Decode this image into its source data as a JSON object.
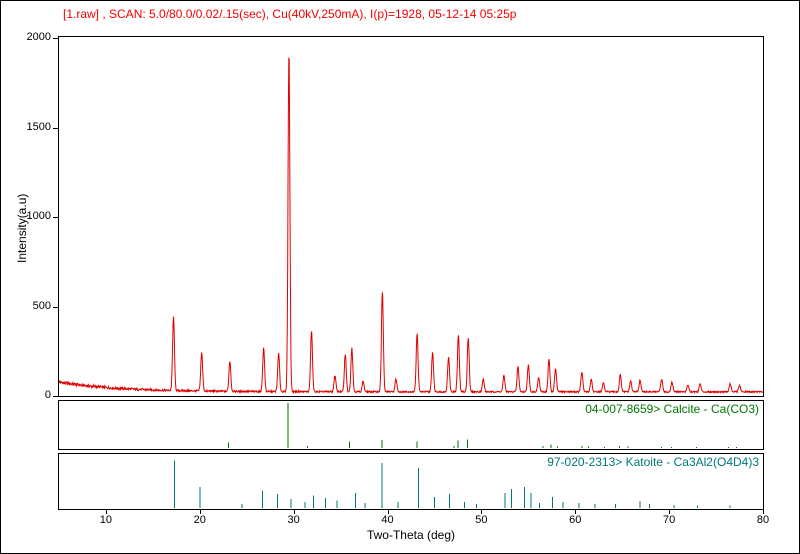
{
  "header": {
    "text": "[1.raw] , SCAN: 5.0/80.0/0.02/.15(sec), Cu(40kV,250mA), I(p)=1928, 05-12-14 05:25p",
    "color": "#f40000"
  },
  "axes": {
    "x_label": "Two-Theta (deg)",
    "y_label": "Intensity(a.u)",
    "x_range": [
      5,
      80
    ],
    "y_range": [
      0,
      2000
    ],
    "x_ticks": [
      10,
      20,
      30,
      40,
      50,
      60,
      70,
      80
    ],
    "y_ticks": [
      0,
      500,
      1000,
      1500,
      2000
    ]
  },
  "panels": {
    "calcite": {
      "label": "04-007-8659> Calcite - Ca(CO3)",
      "color": "#007700"
    },
    "katoite": {
      "label": "97-020-2313> Katoite - Ca3Al2(O4D4)3",
      "color": "#007878"
    }
  },
  "chart_data": [
    {
      "type": "line",
      "name": "1.raw measured XRD trace",
      "color": "#e00000",
      "x_range": [
        5,
        80
      ],
      "ylim": [
        0,
        2000
      ],
      "xlabel": "Two-Theta (deg)",
      "ylabel": "Intensity(a.u)",
      "peak_max_intensity": 1928,
      "background": {
        "base": 18,
        "amp": 55,
        "decay": 6,
        "noise_base": 4,
        "noise_amp": 6,
        "noise_decay": 10
      },
      "peak_sigma": 0.1,
      "peaks": [
        [
          17.2,
          410
        ],
        [
          20.2,
          215
        ],
        [
          23.2,
          170
        ],
        [
          26.8,
          245
        ],
        [
          28.4,
          215
        ],
        [
          29.5,
          1905
        ],
        [
          31.9,
          340
        ],
        [
          34.4,
          90
        ],
        [
          35.5,
          210
        ],
        [
          36.2,
          245
        ],
        [
          37.4,
          60
        ],
        [
          39.45,
          560
        ],
        [
          40.9,
          70
        ],
        [
          43.15,
          325
        ],
        [
          44.8,
          220
        ],
        [
          46.5,
          195
        ],
        [
          47.55,
          315
        ],
        [
          48.6,
          305
        ],
        [
          50.2,
          70
        ],
        [
          52.4,
          90
        ],
        [
          53.9,
          140
        ],
        [
          55.0,
          150
        ],
        [
          56.1,
          80
        ],
        [
          57.2,
          180
        ],
        [
          57.9,
          130
        ],
        [
          60.7,
          110
        ],
        [
          61.7,
          70
        ],
        [
          63.0,
          50
        ],
        [
          64.8,
          95
        ],
        [
          65.9,
          60
        ],
        [
          66.9,
          65
        ],
        [
          69.2,
          70
        ],
        [
          70.3,
          55
        ],
        [
          72.0,
          40
        ],
        [
          73.3,
          45
        ],
        [
          76.5,
          45
        ],
        [
          77.5,
          35
        ]
      ]
    },
    {
      "type": "bar",
      "name": "Calcite reference stick pattern",
      "reference_id": "04-007-8659",
      "phase": "Calcite - Ca(CO3)",
      "color": "#007700",
      "x_range": [
        5,
        80
      ],
      "peaks": [
        [
          23.05,
          12
        ],
        [
          29.4,
          100
        ],
        [
          31.45,
          4
        ],
        [
          35.95,
          14
        ],
        [
          39.4,
          18
        ],
        [
          43.15,
          15
        ],
        [
          47.1,
          4
        ],
        [
          47.5,
          17
        ],
        [
          48.5,
          19
        ],
        [
          56.55,
          4
        ],
        [
          57.4,
          8
        ],
        [
          58.1,
          3
        ],
        [
          60.7,
          5
        ],
        [
          61.4,
          3
        ],
        [
          63.1,
          2
        ],
        [
          64.7,
          5
        ],
        [
          65.6,
          3
        ],
        [
          69.2,
          2
        ],
        [
          70.25,
          2
        ],
        [
          72.9,
          2
        ],
        [
          76.3,
          2
        ],
        [
          77.2,
          2
        ]
      ]
    },
    {
      "type": "bar",
      "name": "Katoite reference stick pattern",
      "reference_id": "97-020-2313",
      "phase": "Katoite - Ca3Al2(O4D4)3",
      "color": "#007878",
      "x_range": [
        5,
        80
      ],
      "peaks": [
        [
          17.3,
          95
        ],
        [
          20.0,
          42
        ],
        [
          24.5,
          8
        ],
        [
          26.7,
          35
        ],
        [
          28.3,
          28
        ],
        [
          29.7,
          18
        ],
        [
          31.2,
          12
        ],
        [
          32.1,
          25
        ],
        [
          33.4,
          20
        ],
        [
          34.6,
          15
        ],
        [
          36.6,
          30
        ],
        [
          37.6,
          10
        ],
        [
          39.4,
          90
        ],
        [
          41.1,
          12
        ],
        [
          43.3,
          80
        ],
        [
          45.0,
          22
        ],
        [
          46.6,
          28
        ],
        [
          48.2,
          12
        ],
        [
          49.5,
          8
        ],
        [
          52.5,
          30
        ],
        [
          53.2,
          38
        ],
        [
          54.6,
          42
        ],
        [
          55.3,
          30
        ],
        [
          56.2,
          10
        ],
        [
          57.6,
          22
        ],
        [
          58.7,
          12
        ],
        [
          60.4,
          10
        ],
        [
          62.1,
          8
        ],
        [
          64.3,
          8
        ],
        [
          66.9,
          14
        ],
        [
          67.9,
          8
        ],
        [
          70.5,
          6
        ],
        [
          73.0,
          5
        ],
        [
          76.5,
          5
        ]
      ]
    }
  ]
}
